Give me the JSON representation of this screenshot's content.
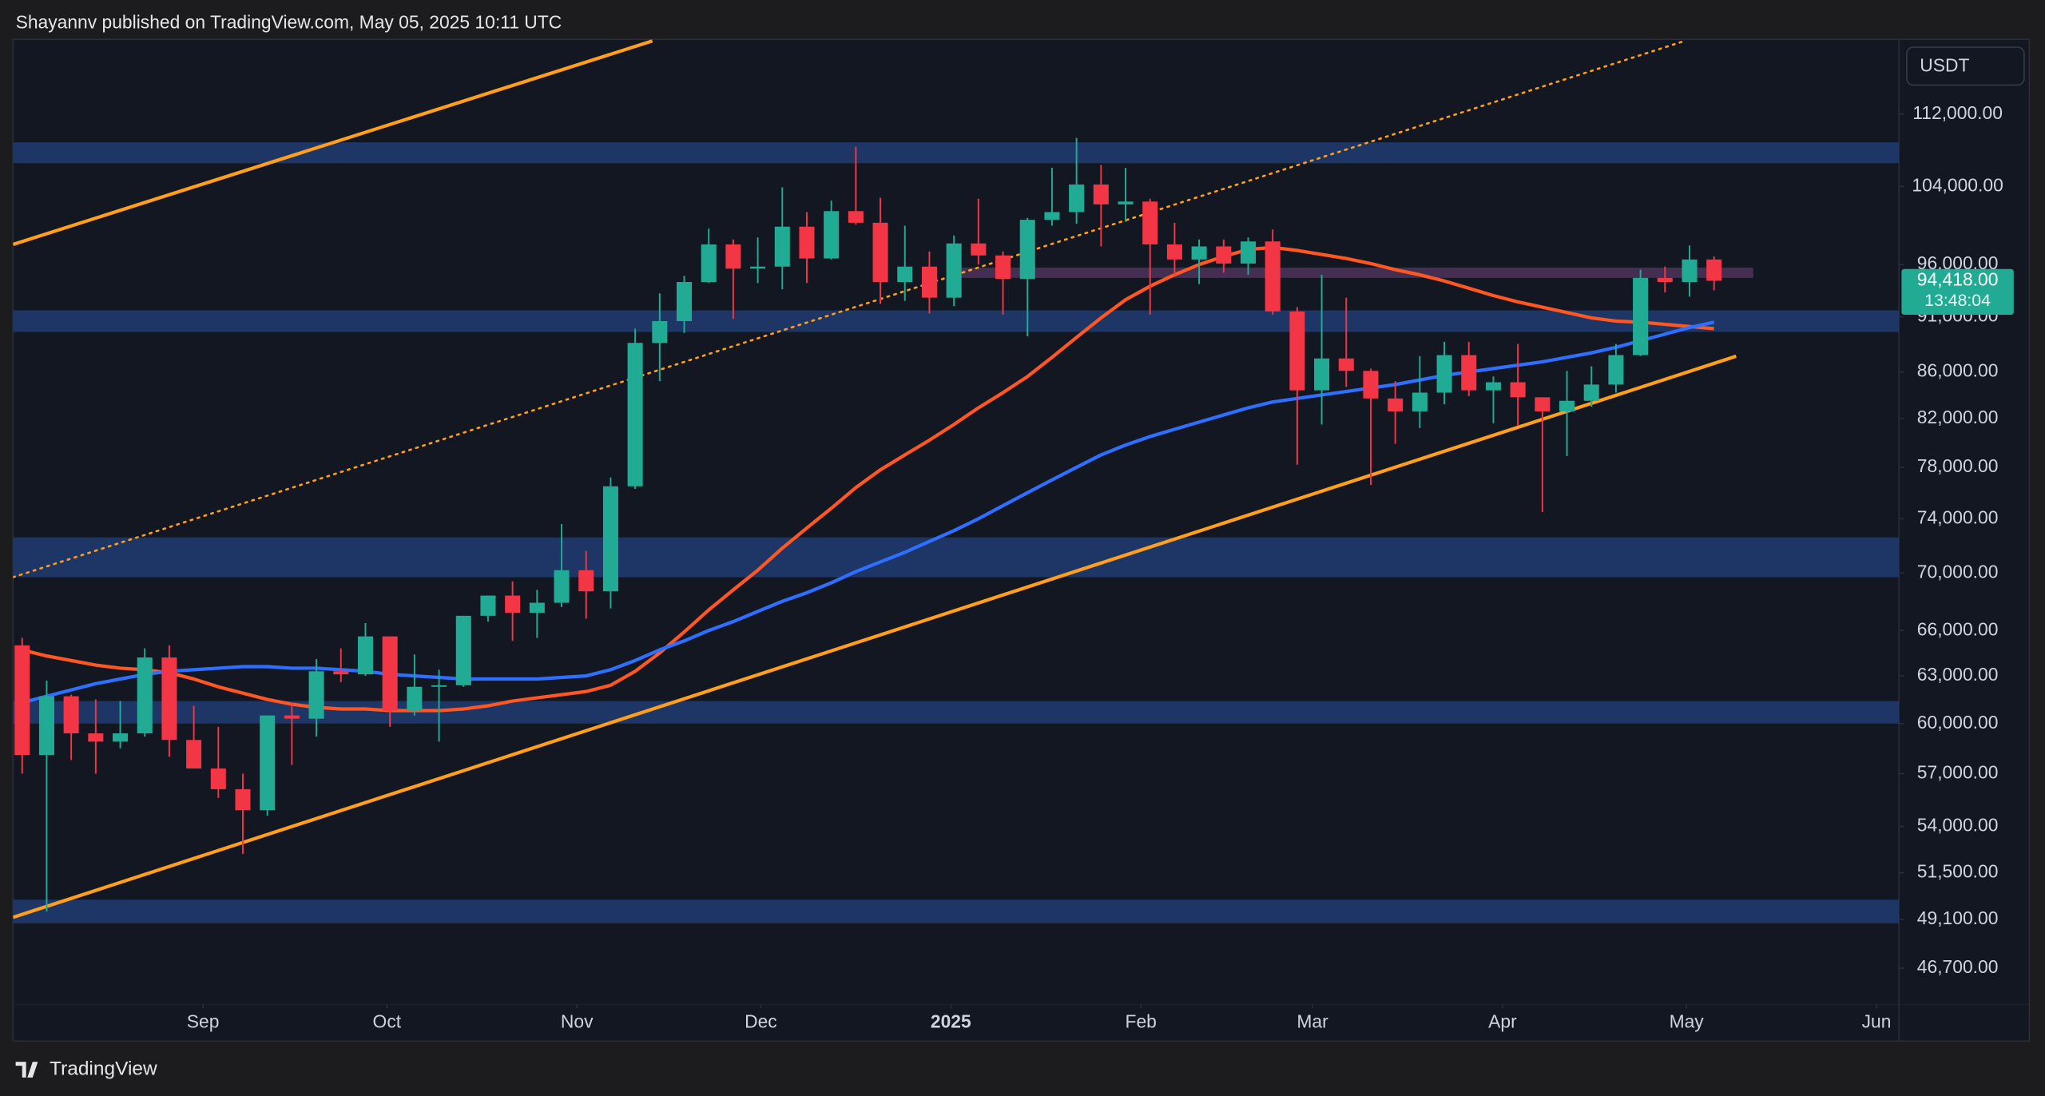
{
  "header": {
    "byline": "Shayannv published on TradingView.com, May 05, 2025 10:11 UTC"
  },
  "footer": {
    "brand": "TradingView"
  },
  "currency_button": "USDT",
  "chart_data": {
    "type": "candlestick",
    "log_scale": true,
    "grid": false,
    "up_color": "#22ab94",
    "down_color": "#f23645",
    "xlim": [
      -0.372,
      76.54
    ],
    "xticks": [
      {
        "value": 7.375,
        "label": "Sep"
      },
      {
        "value": 14.875,
        "label": "Oct"
      },
      {
        "value": 22.625,
        "label": "Nov"
      },
      {
        "value": 30.125,
        "label": "Dec"
      },
      {
        "value": 37.875,
        "label": "2025"
      },
      {
        "value": 45.625,
        "label": "Feb"
      },
      {
        "value": 52.625,
        "label": "Mar"
      },
      {
        "value": 60.375,
        "label": "Apr"
      },
      {
        "value": 67.875,
        "label": "May"
      },
      {
        "value": 75.625,
        "label": "Jun"
      }
    ],
    "ylim": [
      45000,
      120900
    ],
    "yticks": [
      {
        "value": 112000,
        "label": "112,000.00"
      },
      {
        "value": 104000,
        "label": "104,000.00"
      },
      {
        "value": 96000,
        "label": "96,000.00"
      },
      {
        "value": 91000,
        "label": "91,000.00"
      },
      {
        "value": 86000,
        "label": "86,000.00"
      },
      {
        "value": 82000,
        "label": "82,000.00"
      },
      {
        "value": 78000,
        "label": "78,000.00"
      },
      {
        "value": 74000,
        "label": "74,000.00"
      },
      {
        "value": 70000,
        "label": "70,000.00"
      },
      {
        "value": 66000,
        "label": "66,000.00"
      },
      {
        "value": 63000,
        "label": "63,000.00"
      },
      {
        "value": 60000,
        "label": "60,000.00"
      },
      {
        "value": 57000,
        "label": "57,000.00"
      },
      {
        "value": 54000,
        "label": "54,000.00"
      },
      {
        "value": 51500,
        "label": "51,500.00"
      },
      {
        "value": 49100,
        "label": "49,100.00"
      },
      {
        "value": 46700,
        "label": "46,700.00"
      }
    ],
    "open": [
      65000,
      58100,
      61700,
      59400,
      58900,
      59400,
      64200,
      59000,
      57300,
      56100,
      54900,
      60500,
      60300,
      63300,
      63100,
      65600,
      60800,
      62300,
      62400,
      67000,
      68400,
      67200,
      67900,
      70200,
      68700,
      76500,
      88600,
      90600,
      94300,
      98000,
      95600,
      95800,
      99800,
      96600,
      101400,
      100200,
      94300,
      95800,
      92800,
      98100,
      96900,
      94600,
      100500,
      101300,
      104200,
      102100,
      102400,
      98000,
      96500,
      97800,
      96100,
      98300,
      91500,
      84400,
      87200,
      86100,
      83700,
      82600,
      84200,
      87500,
      84400,
      85100,
      83800,
      82600,
      83500,
      84900,
      87500,
      94700,
      94300,
      96500
    ],
    "high": [
      65500,
      62700,
      61800,
      61500,
      61400,
      64800,
      65000,
      61100,
      59800,
      57000,
      60500,
      61300,
      64100,
      64800,
      66500,
      65600,
      64400,
      63400,
      67000,
      68400,
      69400,
      68800,
      73600,
      71600,
      77200,
      89900,
      93200,
      94900,
      99600,
      98500,
      98700,
      103900,
      101300,
      102500,
      108300,
      102800,
      99900,
      97300,
      98900,
      102700,
      97300,
      100700,
      106000,
      109300,
      106300,
      106000,
      102700,
      100200,
      98500,
      98500,
      98700,
      99500,
      91900,
      95000,
      92800,
      86300,
      85200,
      87400,
      88700,
      88700,
      85600,
      88500,
      83800,
      86100,
      86500,
      88500,
      95500,
      95800,
      97900,
      96800
    ],
    "low": [
      57000,
      49500,
      57800,
      57000,
      58500,
      59200,
      58000,
      57400,
      55600,
      52500,
      54600,
      57500,
      59200,
      62600,
      63000,
      59800,
      60500,
      58900,
      62300,
      66600,
      65300,
      65500,
      67600,
      66800,
      67500,
      76300,
      85200,
      89500,
      94200,
      90800,
      94200,
      93600,
      94200,
      96500,
      100000,
      92200,
      92500,
      91300,
      92000,
      96000,
      91200,
      89200,
      99900,
      100100,
      97800,
      100300,
      91200,
      95000,
      94100,
      95200,
      95000,
      91200,
      78200,
      81500,
      84700,
      76600,
      79900,
      81200,
      83200,
      83900,
      81600,
      81400,
      74500,
      78900,
      83000,
      84200,
      87400,
      93300,
      92900,
      93500
    ],
    "close": [
      58100,
      61700,
      59400,
      58900,
      59400,
      64200,
      59000,
      57300,
      56100,
      54900,
      60500,
      60300,
      63300,
      63100,
      65600,
      60800,
      62300,
      62400,
      67000,
      68400,
      67200,
      67900,
      70200,
      68700,
      76500,
      88600,
      90600,
      94300,
      98000,
      95600,
      95800,
      99800,
      96600,
      101400,
      100200,
      94300,
      95800,
      92800,
      98100,
      96900,
      94600,
      100500,
      101300,
      104200,
      102100,
      102400,
      98000,
      96500,
      97800,
      96100,
      98300,
      91500,
      84400,
      87200,
      86100,
      83700,
      82600,
      84200,
      87500,
      84400,
      85100,
      83800,
      82600,
      83500,
      84900,
      87500,
      94700,
      94300,
      96500,
      94418
    ],
    "series": [
      {
        "color": "#ff5722",
        "values": [
          64700,
          64300,
          64000,
          63700,
          63500,
          63400,
          63200,
          62800,
          62300,
          61900,
          61500,
          61200,
          61000,
          60900,
          60900,
          60800,
          60800,
          60800,
          60900,
          61100,
          61400,
          61600,
          61800,
          62000,
          62400,
          63300,
          64500,
          65900,
          67400,
          68800,
          70200,
          71800,
          73300,
          74800,
          76400,
          77800,
          79000,
          80200,
          81500,
          82900,
          84200,
          85600,
          87300,
          89100,
          90900,
          92600,
          93900,
          95000,
          96000,
          96800,
          97500,
          97700,
          97400,
          97000,
          96600,
          96100,
          95500,
          95000,
          94400,
          93700,
          93000,
          92400,
          91900,
          91400,
          90900,
          90600,
          90500,
          90300,
          90100,
          89900
        ]
      },
      {
        "color": "#2f6fff",
        "values": [
          61300,
          61700,
          62100,
          62500,
          62800,
          63100,
          63300,
          63400,
          63500,
          63600,
          63600,
          63500,
          63500,
          63400,
          63300,
          63100,
          63000,
          62900,
          62800,
          62800,
          62800,
          62800,
          62900,
          63000,
          63400,
          64000,
          64700,
          65300,
          66000,
          66600,
          67300,
          68000,
          68600,
          69300,
          70100,
          70800,
          71500,
          72300,
          73100,
          74000,
          75000,
          76000,
          77000,
          78000,
          79000,
          79800,
          80500,
          81100,
          81700,
          82300,
          82900,
          83400,
          83700,
          84000,
          84300,
          84600,
          84900,
          85300,
          85700,
          86000,
          86300,
          86600,
          86900,
          87300,
          87700,
          88200,
          88800,
          89400,
          90000,
          90500
        ]
      }
    ],
    "zones": [
      {
        "low": 106500,
        "high": 108800,
        "color": "#1f3a6e"
      },
      {
        "low": 89600,
        "high": 91600,
        "color": "#1f3a6e"
      },
      {
        "low": 69700,
        "high": 72600,
        "color": "#1f3a6e"
      },
      {
        "low": 60000,
        "high": 61400,
        "color": "#1f3a6e"
      },
      {
        "low": 48900,
        "high": 50100,
        "color": "#1f3a6e"
      },
      {
        "low": 94700,
        "high": 95700,
        "color": "#4a3258",
        "x": [
          38.2,
          70.6
        ]
      }
    ],
    "trendlines": [
      {
        "x": [
          -0.372,
          69.9
        ],
        "y": [
          49200,
          87400
        ],
        "color": "#ff9f1a",
        "style": "solid"
      },
      {
        "x": [
          -0.372,
          25.7
        ],
        "y": [
          98000,
          120700
        ],
        "color": "#ff9f1a",
        "style": "solid"
      },
      {
        "x": [
          -0.372,
          67.8
        ],
        "y": [
          69700,
          120700
        ],
        "color": "#ff9f1a",
        "style": "dotted"
      }
    ],
    "last_price": {
      "value": 94418,
      "label": "94,418.00"
    },
    "countdown": "13:48:04"
  }
}
